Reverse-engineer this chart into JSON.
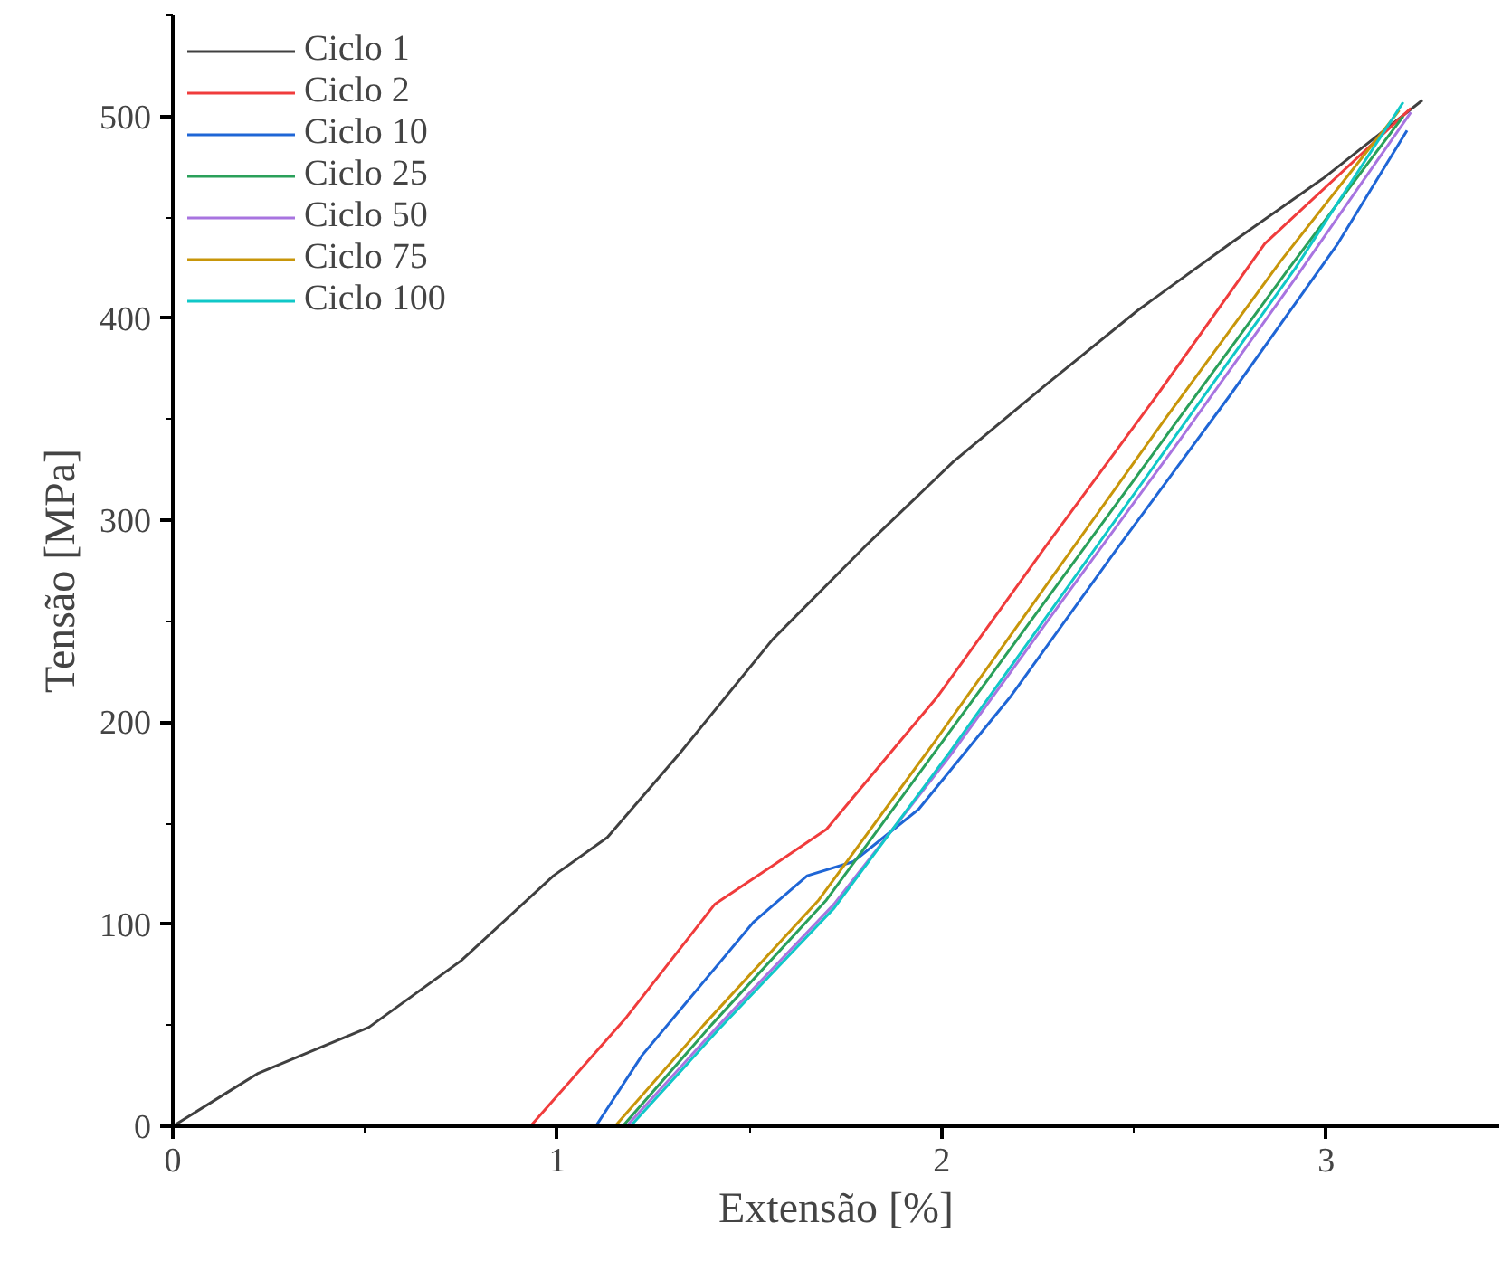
{
  "chart_data": {
    "type": "line",
    "xlabel": "Extensão [%]",
    "ylabel": "Tensão [MPa]",
    "xlim": [
      0,
      3.45
    ],
    "ylim": [
      0,
      550
    ],
    "xticks": [
      0,
      1,
      2,
      3
    ],
    "yticks": [
      0,
      100,
      200,
      300,
      400,
      500
    ],
    "grid": false,
    "legend": "top left",
    "line_style": "solid",
    "marker": "none",
    "series": [
      {
        "name": "Ciclo 1",
        "color": "#404040",
        "x": [
          0,
          0.22,
          0.51,
          0.75,
          0.99,
          1.13,
          1.32,
          1.56,
          1.8,
          2.03,
          2.27,
          2.51,
          2.75,
          2.99,
          3.25
        ],
        "values": [
          0,
          26,
          49,
          82,
          124,
          143,
          185,
          241,
          287,
          329,
          367,
          404,
          437,
          469,
          508
        ]
      },
      {
        "name": "Ciclo 2",
        "color": "#f03c3c",
        "x": [
          0.93,
          1.18,
          1.41,
          1.56,
          1.7,
          1.99,
          2.27,
          2.56,
          2.84,
          3.22
        ],
        "values": [
          0,
          54,
          110,
          129,
          147,
          213,
          287,
          362,
          437,
          504
        ]
      },
      {
        "name": "Ciclo 10",
        "color": "#1f66d6",
        "x": [
          1.1,
          1.22,
          1.51,
          1.65,
          1.77,
          1.94,
          2.18,
          2.46,
          2.75,
          3.03,
          3.21
        ],
        "values": [
          0,
          35,
          101,
          124,
          131,
          157,
          213,
          287,
          362,
          437,
          493
        ]
      },
      {
        "name": "Ciclo 25",
        "color": "#2aa05a",
        "x": [
          1.17,
          1.4,
          1.7,
          2.0,
          2.3,
          2.6,
          2.9,
          3.2
        ],
        "values": [
          0,
          50,
          112,
          190,
          268,
          346,
          424,
          500
        ]
      },
      {
        "name": "Ciclo 50",
        "color": "#a874e0",
        "x": [
          1.18,
          1.42,
          1.72,
          2.02,
          2.32,
          2.62,
          2.92,
          3.22
        ],
        "values": [
          0,
          50,
          110,
          183,
          262,
          340,
          420,
          502
        ]
      },
      {
        "name": "Ciclo 75",
        "color": "#c8960a",
        "x": [
          1.15,
          1.38,
          1.68,
          1.98,
          2.28,
          2.58,
          2.88,
          3.19
        ],
        "values": [
          0,
          50,
          112,
          190,
          270,
          350,
          428,
          503
        ]
      },
      {
        "name": "Ciclo 100",
        "color": "#10c8c8",
        "x": [
          1.19,
          1.42,
          1.72,
          2.02,
          2.32,
          2.62,
          2.92,
          3.2
        ],
        "values": [
          0,
          48,
          108,
          185,
          265,
          345,
          425,
          507
        ]
      }
    ]
  }
}
